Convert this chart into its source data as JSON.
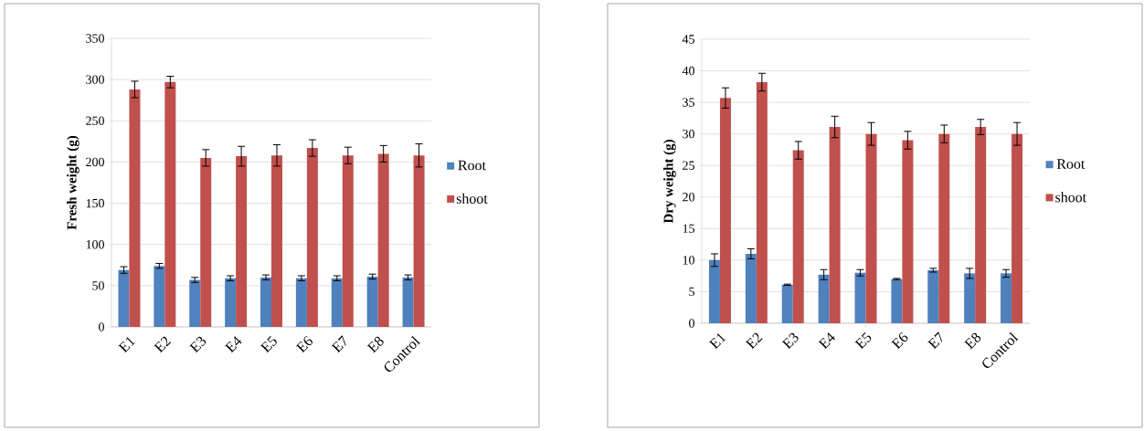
{
  "chart_data": [
    {
      "type": "bar",
      "ylabel": "Fresh weight (g)",
      "categories": [
        "E1",
        "E2",
        "E3",
        "E4",
        "E5",
        "E6",
        "E7",
        "E8",
        "Control"
      ],
      "ylim": [
        0,
        350
      ],
      "yticks": [
        0,
        50,
        100,
        150,
        200,
        250,
        300,
        350
      ],
      "grid": "y",
      "legend": "right",
      "series": [
        {
          "name": "Root",
          "color": "#4f81bd",
          "values": [
            69,
            74,
            57,
            59,
            60,
            59,
            59,
            61,
            60
          ],
          "errors": [
            4,
            3,
            3,
            3,
            3,
            3,
            3,
            3,
            3
          ]
        },
        {
          "name": "shoot",
          "color": "#c0504d",
          "values": [
            288,
            297,
            205,
            207,
            208,
            217,
            208,
            210,
            208
          ],
          "errors": [
            10,
            7,
            10,
            12,
            13,
            10,
            10,
            10,
            14
          ]
        }
      ]
    },
    {
      "type": "bar",
      "ylabel": "Dry weight (g)",
      "categories": [
        "E1",
        "E2",
        "E3",
        "E4",
        "E5",
        "E6",
        "E7",
        "E8",
        "Control"
      ],
      "ylim": [
        0,
        45
      ],
      "yticks": [
        0,
        5,
        10,
        15,
        20,
        25,
        30,
        35,
        40,
        45
      ],
      "grid": "y",
      "legend": "right",
      "series": [
        {
          "name": "Root",
          "color": "#4f81bd",
          "values": [
            10.0,
            11.0,
            6.1,
            7.7,
            8.0,
            7.0,
            8.4,
            7.9,
            7.9
          ],
          "errors": [
            1.0,
            0.8,
            0.1,
            0.8,
            0.5,
            0.1,
            0.3,
            0.8,
            0.6
          ]
        },
        {
          "name": "shoot",
          "color": "#c0504d",
          "values": [
            35.7,
            38.2,
            27.4,
            31.1,
            30.0,
            29.0,
            30.0,
            31.1,
            30.0
          ],
          "errors": [
            1.6,
            1.4,
            1.4,
            1.7,
            1.8,
            1.4,
            1.4,
            1.2,
            1.8
          ]
        }
      ]
    }
  ]
}
